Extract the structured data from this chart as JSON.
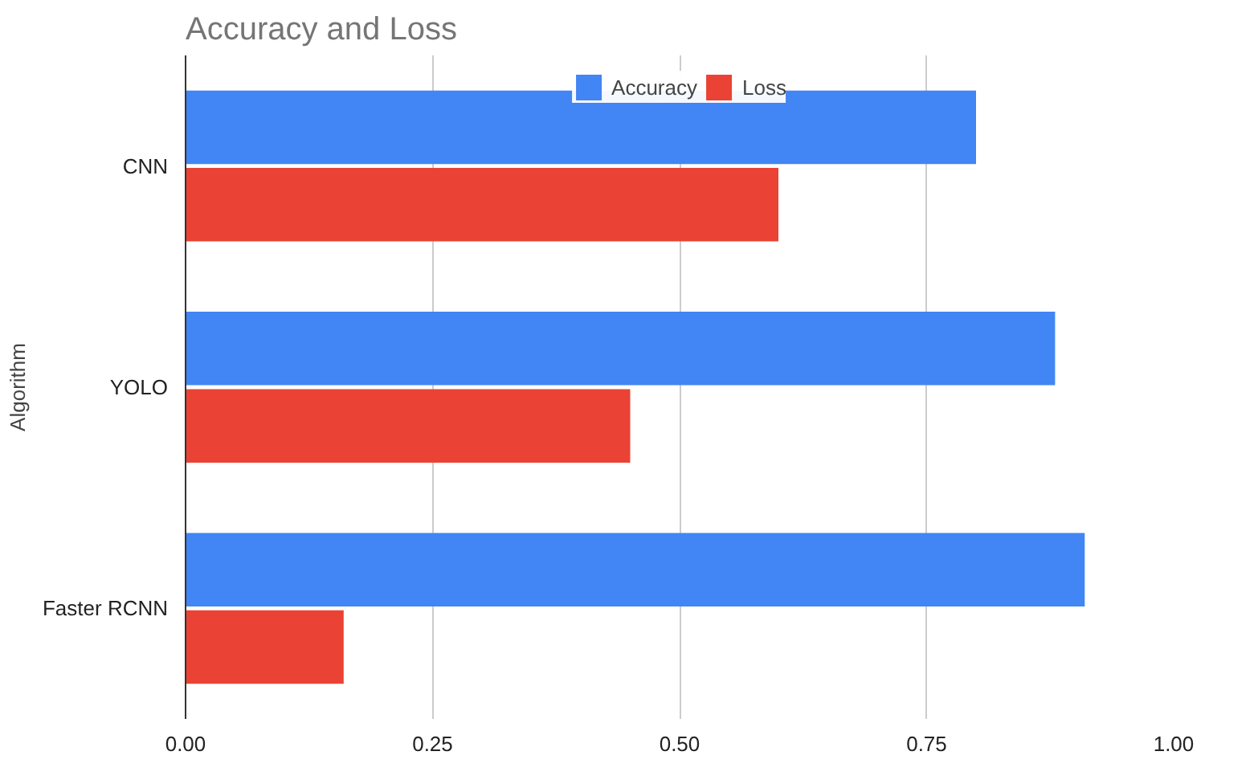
{
  "chart_data": {
    "type": "bar",
    "orientation": "horizontal",
    "title": "Accuracy and Loss",
    "ylabel": "Algorithm",
    "categories": [
      "CNN",
      "YOLO",
      "Faster RCNN"
    ],
    "series": [
      {
        "name": "Accuracy",
        "color": "#4285f4",
        "values": [
          0.8,
          0.88,
          0.91
        ]
      },
      {
        "name": "Loss",
        "color": "#ea4335",
        "values": [
          0.6,
          0.45,
          0.16
        ]
      }
    ],
    "xlim": [
      0,
      1
    ],
    "xticks": [
      {
        "value": 0,
        "label": "0.00"
      },
      {
        "value": 0.25,
        "label": "0.25"
      },
      {
        "value": 0.5,
        "label": "0.50"
      },
      {
        "value": 0.75,
        "label": "0.75"
      },
      {
        "value": 1,
        "label": "1.00"
      }
    ],
    "grid": "x",
    "legend": "top"
  }
}
